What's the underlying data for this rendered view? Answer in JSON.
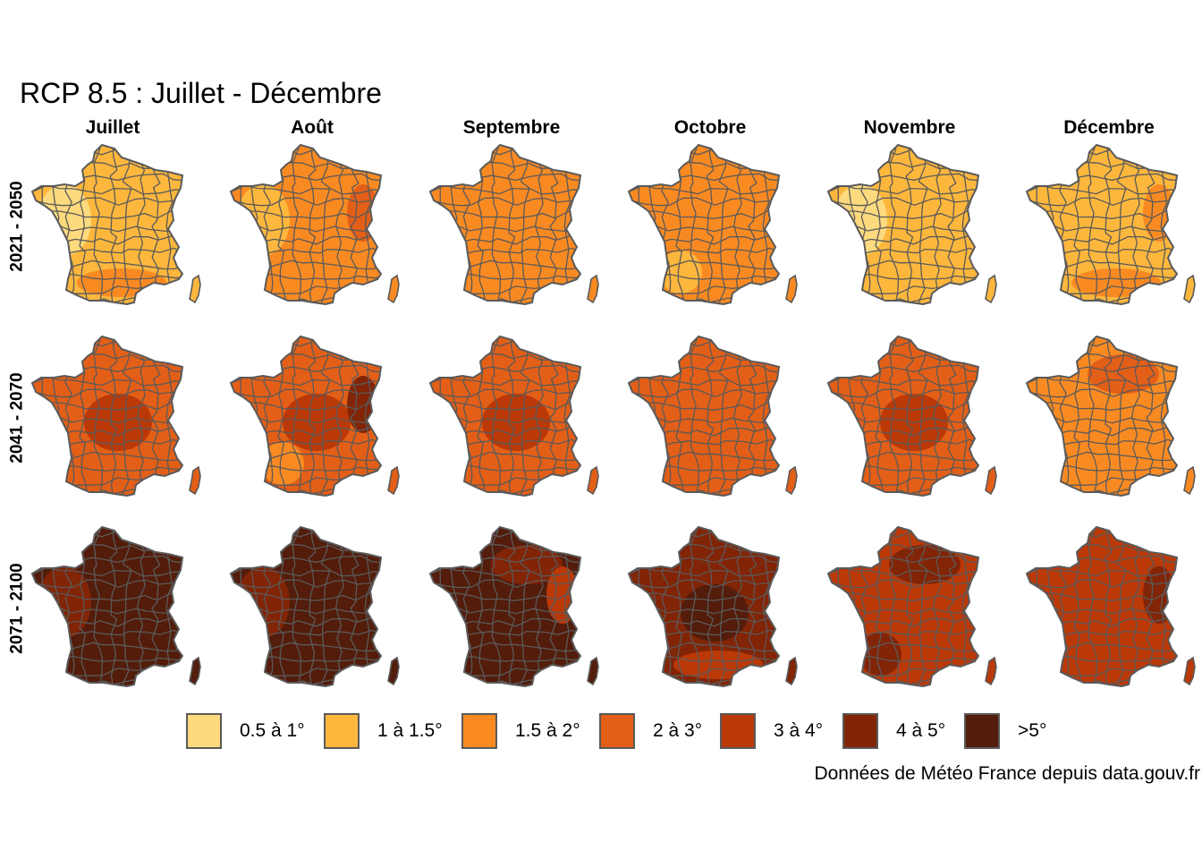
{
  "title": "RCP 8.5 : Juillet - Décembre",
  "columns": [
    "Juillet",
    "Août",
    "Septembre",
    "Octobre",
    "Novembre",
    "Décembre"
  ],
  "rows": [
    "2021 - 2050",
    "2041 - 2070",
    "2071 - 2100"
  ],
  "legend": [
    {
      "label": "0.5 à 1°",
      "color": "#FEDA7E"
    },
    {
      "label": "1 à 1.5°",
      "color": "#FDB73D"
    },
    {
      "label": "1.5 à 2°",
      "color": "#F98A22"
    },
    {
      "label": "2 à 3°",
      "color": "#E35F17"
    },
    {
      "label": "3 à 4°",
      "color": "#BB3807"
    },
    {
      "label": "4 à 5°",
      "color": "#822406"
    },
    {
      "label": ">5°",
      "color": "#531C0B"
    }
  ],
  "source": "Données de Météo France depuis data.gouv.fr",
  "border_color": "#5a5a5a",
  "panels": [
    [
      {
        "base": 1,
        "patches": [
          {
            "c": 0,
            "where": "west"
          },
          {
            "c": 2,
            "where": "south"
          }
        ]
      },
      {
        "base": 2,
        "patches": [
          {
            "c": 1,
            "where": "west"
          },
          {
            "c": 3,
            "where": "east"
          }
        ]
      },
      {
        "base": 2,
        "patches": []
      },
      {
        "base": 2,
        "patches": [
          {
            "c": 1,
            "where": "southwest"
          }
        ]
      },
      {
        "base": 1,
        "patches": [
          {
            "c": 0,
            "where": "west"
          }
        ]
      },
      {
        "base": 1,
        "patches": [
          {
            "c": 2,
            "where": "south"
          },
          {
            "c": 2,
            "where": "east"
          }
        ]
      }
    ],
    [
      {
        "base": 3,
        "patches": [
          {
            "c": 4,
            "where": "center"
          }
        ]
      },
      {
        "base": 3,
        "patches": [
          {
            "c": 4,
            "where": "center"
          },
          {
            "c": 5,
            "where": "east"
          },
          {
            "c": 2,
            "where": "southwest"
          }
        ]
      },
      {
        "base": 3,
        "patches": [
          {
            "c": 4,
            "where": "center"
          }
        ]
      },
      {
        "base": 3,
        "patches": []
      },
      {
        "base": 3,
        "patches": [
          {
            "c": 4,
            "where": "center"
          }
        ]
      },
      {
        "base": 2,
        "patches": [
          {
            "c": 3,
            "where": "north"
          }
        ]
      }
    ],
    [
      {
        "base": 6,
        "patches": [
          {
            "c": 5,
            "where": "west"
          }
        ]
      },
      {
        "base": 6,
        "patches": [
          {
            "c": 5,
            "where": "west"
          }
        ]
      },
      {
        "base": 6,
        "patches": [
          {
            "c": 5,
            "where": "north"
          },
          {
            "c": 4,
            "where": "east"
          }
        ]
      },
      {
        "base": 5,
        "patches": [
          {
            "c": 6,
            "where": "center"
          },
          {
            "c": 4,
            "where": "south"
          }
        ]
      },
      {
        "base": 4,
        "patches": [
          {
            "c": 5,
            "where": "north"
          },
          {
            "c": 5,
            "where": "southwest"
          }
        ]
      },
      {
        "base": 4,
        "patches": [
          {
            "c": 5,
            "where": "east"
          }
        ]
      }
    ]
  ]
}
